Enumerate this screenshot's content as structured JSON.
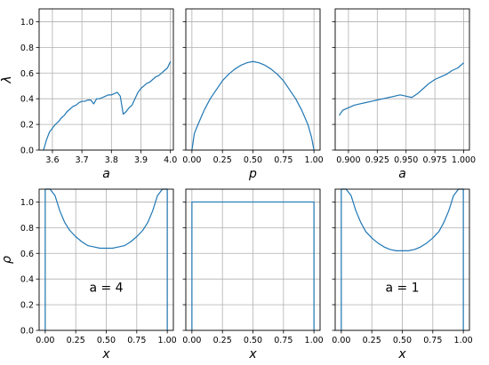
{
  "chart_data": [
    {
      "type": "line",
      "panel": "top-left",
      "xlabel": "a",
      "ylabel": "λ",
      "xlim": [
        3.555,
        4.01
      ],
      "ylim": [
        0,
        1.1
      ],
      "xticks": [
        3.6,
        3.7,
        3.8,
        3.9,
        4.0
      ],
      "xtick_labels": [
        "3.6",
        "3.7",
        "3.8",
        "3.9",
        "4.0"
      ],
      "yticks": [
        0.0,
        0.2,
        0.4,
        0.6,
        0.8,
        1.0
      ],
      "ytick_labels": [
        "0.0",
        "0.2",
        "0.4",
        "0.6",
        "0.8",
        "1.0"
      ],
      "grid": true,
      "series": [
        {
          "x": [
            3.57,
            3.58,
            3.59,
            3.6,
            3.61,
            3.62,
            3.63,
            3.64,
            3.65,
            3.66,
            3.67,
            3.68,
            3.69,
            3.7,
            3.71,
            3.72,
            3.73,
            3.74,
            3.75,
            3.76,
            3.77,
            3.78,
            3.79,
            3.8,
            3.81,
            3.82,
            3.83,
            3.84,
            3.85,
            3.86,
            3.87,
            3.88,
            3.89,
            3.9,
            3.91,
            3.92,
            3.93,
            3.94,
            3.95,
            3.96,
            3.97,
            3.98,
            3.99,
            4.0
          ],
          "y": [
            0.0,
            0.08,
            0.14,
            0.17,
            0.2,
            0.22,
            0.25,
            0.27,
            0.3,
            0.32,
            0.34,
            0.35,
            0.37,
            0.38,
            0.38,
            0.39,
            0.39,
            0.36,
            0.4,
            0.4,
            0.41,
            0.42,
            0.43,
            0.43,
            0.44,
            0.45,
            0.42,
            0.28,
            0.3,
            0.33,
            0.35,
            0.4,
            0.45,
            0.48,
            0.5,
            0.52,
            0.53,
            0.55,
            0.57,
            0.58,
            0.6,
            0.62,
            0.64,
            0.69
          ]
        }
      ]
    },
    {
      "type": "line",
      "panel": "top-middle",
      "xlabel": "p",
      "ylabel": "",
      "xlim": [
        -0.05,
        1.05
      ],
      "ylim": [
        0,
        1.1
      ],
      "xticks": [
        0.0,
        0.25,
        0.5,
        0.75,
        1.0
      ],
      "xtick_labels": [
        "0.00",
        "0.25",
        "0.50",
        "0.75",
        "1.00"
      ],
      "yticks": [
        0.0,
        0.2,
        0.4,
        0.6,
        0.8,
        1.0
      ],
      "grid": true,
      "series": [
        {
          "x": [
            0.0,
            0.02,
            0.05,
            0.1,
            0.15,
            0.2,
            0.25,
            0.3,
            0.35,
            0.4,
            0.45,
            0.5,
            0.55,
            0.6,
            0.65,
            0.7,
            0.75,
            0.8,
            0.85,
            0.9,
            0.95,
            0.98,
            1.0
          ],
          "y": [
            0.0,
            0.13,
            0.2,
            0.31,
            0.4,
            0.47,
            0.54,
            0.59,
            0.63,
            0.66,
            0.68,
            0.69,
            0.68,
            0.66,
            0.63,
            0.59,
            0.54,
            0.47,
            0.4,
            0.31,
            0.2,
            0.1,
            0.0
          ]
        }
      ]
    },
    {
      "type": "line",
      "panel": "top-right",
      "xlabel": "a",
      "ylabel": "",
      "xlim": [
        0.8885,
        1.005
      ],
      "ylim": [
        0,
        1.1
      ],
      "xticks": [
        0.9,
        0.925,
        0.95,
        0.975,
        1.0
      ],
      "xtick_labels": [
        "0.900",
        "0.925",
        "0.950",
        "0.975",
        "1.000"
      ],
      "yticks": [
        0.0,
        0.2,
        0.4,
        0.6,
        0.8,
        1.0
      ],
      "grid": true,
      "series": [
        {
          "x": [
            0.892,
            0.895,
            0.9,
            0.905,
            0.91,
            0.915,
            0.92,
            0.925,
            0.93,
            0.935,
            0.94,
            0.945,
            0.95,
            0.955,
            0.96,
            0.965,
            0.97,
            0.975,
            0.98,
            0.985,
            0.99,
            0.995,
            1.0
          ],
          "y": [
            0.27,
            0.31,
            0.33,
            0.35,
            0.36,
            0.37,
            0.38,
            0.39,
            0.4,
            0.41,
            0.42,
            0.43,
            0.42,
            0.41,
            0.44,
            0.48,
            0.52,
            0.55,
            0.57,
            0.59,
            0.62,
            0.64,
            0.68
          ]
        }
      ]
    },
    {
      "type": "line",
      "panel": "bottom-left",
      "xlabel": "x",
      "ylabel": "ρ",
      "annotation": "a = 4",
      "xlim": [
        -0.05,
        1.05
      ],
      "ylim": [
        0,
        1.1
      ],
      "xticks": [
        0.0,
        0.25,
        0.5,
        0.75,
        1.0
      ],
      "xtick_labels": [
        "0.00",
        "0.25",
        "0.50",
        "0.75",
        "1.00"
      ],
      "yticks": [
        0.0,
        0.2,
        0.4,
        0.6,
        0.8,
        1.0
      ],
      "ytick_labels": [
        "0.0",
        "0.2",
        "0.4",
        "0.6",
        "0.8",
        "1.0"
      ],
      "grid": true,
      "series": [
        {
          "x": [
            0.0,
            0.0,
            0.04,
            0.08,
            0.12,
            0.16,
            0.2,
            0.25,
            0.3,
            0.35,
            0.4,
            0.45,
            0.5,
            0.55,
            0.6,
            0.65,
            0.7,
            0.75,
            0.8,
            0.84,
            0.88,
            0.92,
            0.96,
            1.0,
            1.0
          ],
          "y": [
            0.0,
            1.1,
            1.1,
            1.05,
            0.93,
            0.84,
            0.78,
            0.73,
            0.69,
            0.66,
            0.65,
            0.64,
            0.64,
            0.64,
            0.65,
            0.66,
            0.69,
            0.73,
            0.78,
            0.84,
            0.93,
            1.05,
            1.1,
            1.1,
            0.0
          ]
        }
      ]
    },
    {
      "type": "line",
      "panel": "bottom-middle",
      "xlabel": "x",
      "ylabel": "",
      "xlim": [
        -0.05,
        1.05
      ],
      "ylim": [
        0,
        1.1
      ],
      "xticks": [
        0.0,
        0.25,
        0.5,
        0.75,
        1.0
      ],
      "xtick_labels": [
        "0.00",
        "0.25",
        "0.50",
        "0.75",
        "1.00"
      ],
      "yticks": [
        0.0,
        0.2,
        0.4,
        0.6,
        0.8,
        1.0
      ],
      "grid": true,
      "series": [
        {
          "x": [
            0.0,
            0.0,
            0.05,
            0.1,
            0.15,
            0.2,
            0.25,
            0.3,
            0.35,
            0.4,
            0.45,
            0.5,
            0.55,
            0.6,
            0.65,
            0.7,
            0.75,
            0.8,
            0.85,
            0.9,
            0.95,
            1.0,
            1.0
          ],
          "y": [
            0.0,
            1.0,
            1.0,
            1.0,
            1.0,
            1.0,
            1.0,
            1.0,
            1.0,
            1.0,
            1.0,
            1.0,
            1.0,
            1.0,
            1.0,
            1.0,
            1.0,
            1.0,
            1.0,
            1.0,
            1.0,
            1.0,
            0.0
          ]
        }
      ]
    },
    {
      "type": "line",
      "panel": "bottom-right",
      "xlabel": "x",
      "ylabel": "",
      "annotation": "a = 1",
      "xlim": [
        -0.05,
        1.05
      ],
      "ylim": [
        0,
        1.1
      ],
      "xticks": [
        0.0,
        0.25,
        0.5,
        0.75,
        1.0
      ],
      "xtick_labels": [
        "0.00",
        "0.25",
        "0.50",
        "0.75",
        "1.00"
      ],
      "yticks": [
        0.0,
        0.2,
        0.4,
        0.6,
        0.8,
        1.0
      ],
      "grid": true,
      "series": [
        {
          "x": [
            0.0,
            0.0,
            0.04,
            0.08,
            0.12,
            0.16,
            0.2,
            0.25,
            0.3,
            0.35,
            0.4,
            0.45,
            0.5,
            0.55,
            0.6,
            0.65,
            0.7,
            0.75,
            0.8,
            0.84,
            0.88,
            0.92,
            0.96,
            1.0,
            1.0
          ],
          "y": [
            0.0,
            1.1,
            1.1,
            1.05,
            0.93,
            0.84,
            0.77,
            0.72,
            0.68,
            0.65,
            0.63,
            0.62,
            0.62,
            0.62,
            0.63,
            0.65,
            0.68,
            0.72,
            0.77,
            0.84,
            0.93,
            1.05,
            1.1,
            1.1,
            0.0
          ]
        }
      ]
    }
  ],
  "colors": {
    "line": "#1f77b4",
    "grid": "#b0b0b0",
    "axes": "#000000"
  }
}
